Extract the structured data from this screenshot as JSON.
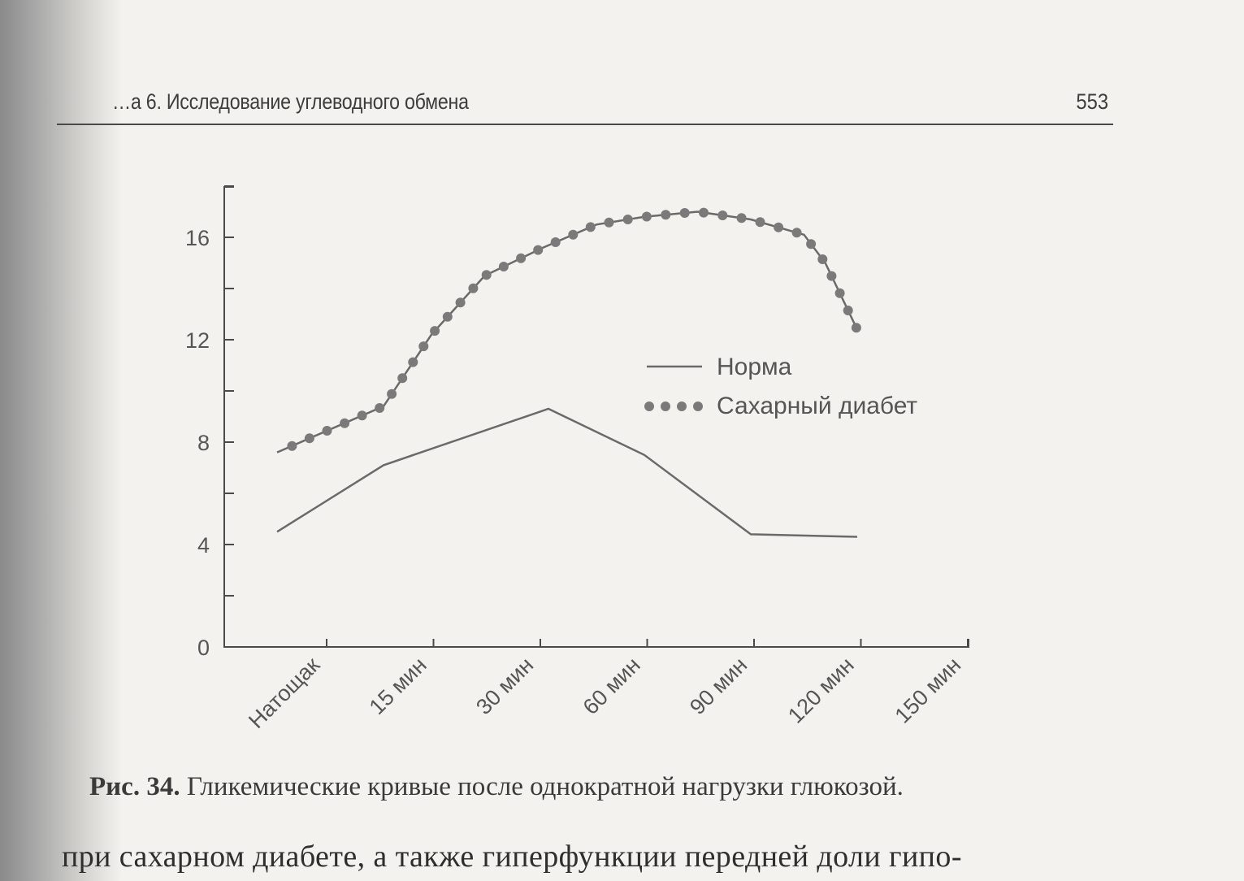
{
  "header": {
    "running_title": "…а 6. Исследование углеводного обмена",
    "page_number": "553"
  },
  "chart_data": {
    "type": "line",
    "categories": [
      "Натощак",
      "15 мин",
      "30 мин",
      "60 мин",
      "90 мин",
      "120 мин",
      "150 мин"
    ],
    "ylim": [
      0,
      18
    ],
    "y_ticks": [
      0,
      4,
      8,
      12,
      16
    ],
    "y_minor_step": 2,
    "legend_position": "center-right",
    "series": [
      {
        "name": "Норма",
        "style": "solid",
        "color": "#6a6a6a",
        "points": [
          [
            0,
            4.5
          ],
          [
            1,
            7.1
          ],
          [
            2.55,
            9.3
          ],
          [
            3.45,
            7.5
          ],
          [
            4.45,
            4.4
          ],
          [
            5.45,
            4.3
          ]
        ]
      },
      {
        "name": "Сахарный диабет",
        "style": "dotted",
        "color": "#7a7a7a",
        "points": [
          [
            0,
            7.6
          ],
          [
            1,
            9.4
          ],
          [
            1.45,
            12.2
          ],
          [
            1.95,
            14.5
          ],
          [
            2.5,
            15.6
          ],
          [
            3.0,
            16.5
          ],
          [
            3.45,
            16.8
          ],
          [
            3.95,
            17.0
          ],
          [
            4.45,
            16.7
          ],
          [
            4.95,
            16.1
          ],
          [
            5.15,
            15.0
          ],
          [
            5.45,
            12.4
          ]
        ]
      }
    ]
  },
  "caption": {
    "label": "Рис. 34.",
    "text": "Гликемические кривые после однократной нагрузки глюкозой."
  },
  "body": {
    "text": "при сахарном диабете, а также гиперфункции передней доли гипо-"
  }
}
